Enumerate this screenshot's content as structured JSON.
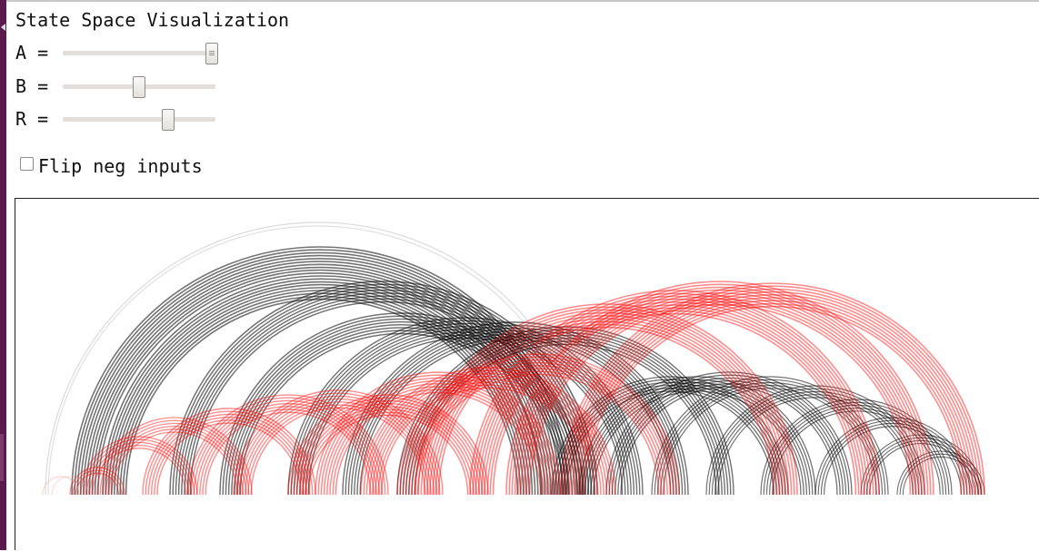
{
  "title": "State Space Visualization",
  "controls": {
    "sliders": [
      {
        "label": "A =",
        "name": "a-slider",
        "value": 1.0
      },
      {
        "label": "B =",
        "name": "b-slider",
        "value": 0.5
      },
      {
        "label": "R =",
        "name": "r-slider",
        "value": 0.7
      }
    ],
    "checkbox": {
      "label": "Flip neg inputs",
      "checked": false
    }
  },
  "colors": {
    "series_black": "#000000",
    "series_red": "#ff0000",
    "canvas_border": "#222222",
    "window_strip": "#5b1a4e"
  }
}
